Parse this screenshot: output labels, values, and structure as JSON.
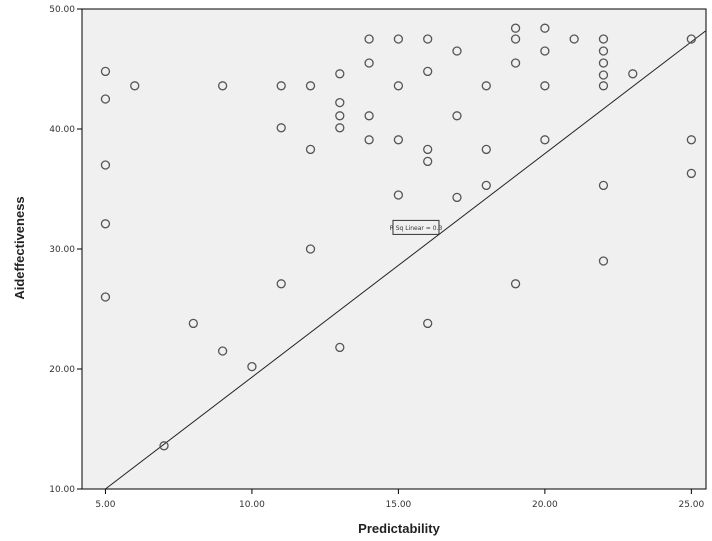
{
  "chart_data": {
    "type": "scatter",
    "xlabel": "Predictability",
    "ylabel": "Aideffectiveness",
    "xlim": [
      4.2,
      25.5
    ],
    "ylim": [
      10,
      50
    ],
    "x_ticks": [
      5,
      10,
      15,
      20,
      25
    ],
    "y_ticks": [
      10,
      20,
      30,
      40,
      50
    ],
    "x_tick_labels": [
      "5.00",
      "10.00",
      "15.00",
      "20.00",
      "25.00"
    ],
    "y_tick_labels": [
      "10.00",
      "20.00",
      "30.00",
      "40.00",
      "50.00"
    ],
    "grid": false,
    "legend": "none",
    "fit_line": {
      "x": [
        5,
        25.5
      ],
      "y": [
        10,
        48.2
      ]
    },
    "annotation": {
      "text": "R Sq Linear = 0.3",
      "x": 15.6,
      "y": 31.8
    },
    "colors": {
      "plot_background": "#f0f0f0",
      "marker": "#555555",
      "line": "#222222"
    },
    "series": [
      {
        "points": [
          [
            5,
            44.8
          ],
          [
            5,
            42.5
          ],
          [
            5,
            37
          ],
          [
            5,
            32.1
          ],
          [
            5,
            26
          ],
          [
            6,
            43.6
          ],
          [
            7,
            13.6
          ],
          [
            8,
            23.8
          ],
          [
            9,
            21.5
          ],
          [
            9,
            43.6
          ],
          [
            10,
            20.2
          ],
          [
            11,
            43.6
          ],
          [
            11,
            40.1
          ],
          [
            11,
            27.1
          ],
          [
            12,
            43.6
          ],
          [
            12,
            38.3
          ],
          [
            12,
            30
          ],
          [
            13,
            44.6
          ],
          [
            13,
            42.2
          ],
          [
            13,
            41.1
          ],
          [
            13,
            40.1
          ],
          [
            13,
            21.8
          ],
          [
            14,
            47.5
          ],
          [
            14,
            45.5
          ],
          [
            14,
            41.1
          ],
          [
            14,
            39.1
          ],
          [
            15,
            47.5
          ],
          [
            15,
            43.6
          ],
          [
            15,
            39.1
          ],
          [
            15,
            34.5
          ],
          [
            16,
            47.5
          ],
          [
            16,
            44.8
          ],
          [
            16,
            38.3
          ],
          [
            16,
            37.3
          ],
          [
            16,
            23.8
          ],
          [
            17,
            46.5
          ],
          [
            17,
            41.1
          ],
          [
            17,
            34.3
          ],
          [
            18,
            43.6
          ],
          [
            18,
            38.3
          ],
          [
            18,
            35.3
          ],
          [
            19,
            48.4
          ],
          [
            19,
            47.5
          ],
          [
            19,
            45.5
          ],
          [
            19,
            27.1
          ],
          [
            20,
            48.4
          ],
          [
            20,
            46.5
          ],
          [
            20,
            43.6
          ],
          [
            20,
            39.1
          ],
          [
            21,
            47.5
          ],
          [
            22,
            47.5
          ],
          [
            22,
            46.5
          ],
          [
            22,
            45.5
          ],
          [
            22,
            44.5
          ],
          [
            22,
            43.6
          ],
          [
            22,
            35.3
          ],
          [
            22,
            29
          ],
          [
            23,
            44.6
          ],
          [
            25,
            47.5
          ],
          [
            25,
            39.1
          ],
          [
            25,
            36.3
          ]
        ]
      }
    ]
  }
}
